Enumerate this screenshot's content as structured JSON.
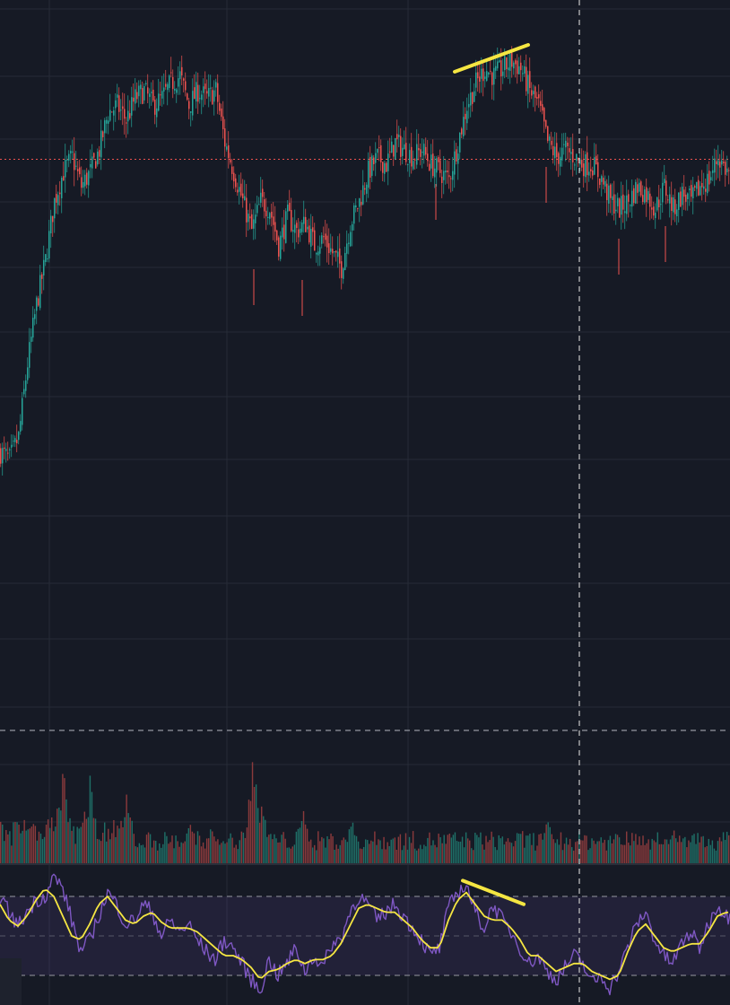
{
  "colors": {
    "background": "#161a25",
    "grid": "#262b37",
    "candle_up": "#26a69a",
    "candle_down": "#ef5350",
    "volume_up": "#1f6f67",
    "volume_down": "#8a3a3c",
    "rsi_line": "#7e57c2",
    "rsi_ma_line": "#f5e642",
    "rsi_band": "#7e57c2",
    "divergence_line": "#f5e642",
    "price_line": "#ef5350",
    "crosshair": "#c8c8c8",
    "separator": "#9598a1"
  },
  "chart_data": [
    {
      "type": "candlestick",
      "panel": "price",
      "title": "",
      "xlabel": "",
      "ylabel": "",
      "grid": true,
      "ylim": [
        0,
        100
      ],
      "x": [
        0,
        10,
        20,
        30,
        40,
        50,
        60,
        70,
        80,
        90,
        100,
        110,
        120,
        130,
        140,
        150,
        160,
        170,
        180,
        190,
        200,
        210,
        220,
        230,
        240,
        250,
        260,
        270,
        280,
        290,
        300,
        310,
        320,
        330,
        340,
        350,
        360,
        370,
        380,
        390,
        400,
        410,
        420,
        430,
        440,
        450,
        460,
        470,
        480,
        490,
        500,
        510,
        520,
        530,
        540,
        550,
        560,
        570,
        580,
        590,
        600,
        610,
        620,
        630,
        640,
        650,
        660,
        670,
        680,
        690,
        700,
        710,
        720,
        730,
        740,
        750,
        760,
        770,
        780,
        790,
        800,
        810
      ],
      "close_path": [
        46,
        45,
        48,
        58,
        66,
        72,
        80,
        84,
        86,
        82,
        84,
        87,
        92,
        93,
        91,
        94,
        95,
        93,
        94,
        96,
        97,
        93,
        95,
        94,
        95,
        88,
        84,
        80,
        76,
        80,
        79,
        74,
        78,
        76,
        77,
        74,
        75,
        73,
        71,
        77,
        80,
        84,
        86,
        85,
        88,
        87,
        86,
        87,
        85,
        84,
        83,
        88,
        93,
        96,
        98,
        97,
        98,
        99,
        98,
        95,
        93,
        88,
        86,
        87,
        86,
        85,
        85,
        83,
        80,
        79,
        80,
        82,
        81,
        79,
        82,
        79,
        81,
        80,
        82,
        83,
        86,
        84
      ],
      "price_line_level": 85.7,
      "divergence_line": {
        "from": [
          507,
          98.1
        ],
        "to": [
          589,
          100
        ]
      }
    },
    {
      "type": "bar",
      "panel": "volume",
      "title": "",
      "bar_count": 400,
      "spike_positions": [
        70,
        100,
        140,
        210,
        235,
        282,
        290,
        337,
        392,
        610,
        690,
        750,
        780
      ],
      "spike_levels": [
        92,
        88,
        62,
        50,
        48,
        130,
        80,
        78,
        58,
        52,
        38,
        40,
        34
      ]
    },
    {
      "type": "line",
      "panel": "rsi",
      "title": "",
      "ylim": [
        15,
        85
      ],
      "upper_band": 70,
      "middle_band": 50,
      "lower_band": 30,
      "series": [
        {
          "color": "#7e57c2",
          "x": [
            0,
            10,
            20,
            30,
            40,
            50,
            60,
            70,
            80,
            90,
            100,
            110,
            120,
            130,
            140,
            150,
            160,
            170,
            180,
            190,
            200,
            210,
            220,
            230,
            240,
            250,
            260,
            270,
            280,
            290,
            300,
            310,
            320,
            330,
            340,
            350,
            360,
            370,
            380,
            390,
            400,
            410,
            420,
            430,
            440,
            450,
            460,
            470,
            480,
            490,
            500,
            510,
            520,
            530,
            540,
            550,
            560,
            570,
            580,
            590,
            600,
            610,
            620,
            630,
            640,
            650,
            660,
            670,
            680,
            690,
            700,
            710,
            720,
            730,
            740,
            750,
            760,
            770,
            780,
            790,
            800,
            810
          ],
          "values": [
            70,
            62,
            55,
            62,
            68,
            70,
            80,
            74,
            58,
            42,
            48,
            60,
            72,
            66,
            56,
            58,
            66,
            62,
            50,
            58,
            52,
            56,
            48,
            42,
            38,
            48,
            44,
            36,
            28,
            22,
            38,
            30,
            36,
            44,
            32,
            40,
            34,
            46,
            48,
            62,
            70,
            66,
            58,
            62,
            66,
            60,
            54,
            48,
            40,
            44,
            64,
            72,
            76,
            62,
            54,
            66,
            58,
            52,
            44,
            36,
            40,
            32,
            28,
            34,
            40,
            36,
            26,
            30,
            24,
            32,
            44,
            56,
            62,
            48,
            40,
            36,
            46,
            52,
            44,
            56,
            66,
            60
          ]
        },
        {
          "color": "#f5e642",
          "x": [
            0,
            10,
            20,
            30,
            40,
            50,
            60,
            70,
            80,
            90,
            100,
            110,
            120,
            130,
            140,
            150,
            160,
            170,
            180,
            190,
            200,
            210,
            220,
            230,
            240,
            250,
            260,
            270,
            280,
            290,
            300,
            310,
            320,
            330,
            340,
            350,
            360,
            370,
            380,
            390,
            400,
            410,
            420,
            430,
            440,
            450,
            460,
            470,
            480,
            490,
            500,
            510,
            520,
            530,
            540,
            550,
            560,
            570,
            580,
            590,
            600,
            610,
            620,
            630,
            640,
            650,
            660,
            670,
            680,
            690,
            700,
            710,
            720,
            730,
            740,
            750,
            760,
            770,
            780,
            790,
            800,
            810
          ],
          "values": [
            66,
            58,
            55,
            60,
            68,
            74,
            70,
            60,
            50,
            48,
            56,
            66,
            70,
            64,
            58,
            56,
            60,
            62,
            57,
            54,
            54,
            54,
            52,
            48,
            44,
            40,
            40,
            38,
            34,
            28,
            32,
            33,
            36,
            38,
            36,
            38,
            38,
            40,
            46,
            55,
            64,
            66,
            64,
            62,
            62,
            58,
            54,
            48,
            44,
            44,
            58,
            68,
            72,
            66,
            60,
            58,
            58,
            54,
            48,
            40,
            40,
            36,
            32,
            34,
            36,
            36,
            32,
            30,
            28,
            30,
            42,
            52,
            56,
            50,
            44,
            42,
            44,
            46,
            46,
            52,
            60,
            62
          ]
        }
      ],
      "divergence_line": {
        "from": [
          516,
          78
        ],
        "to": [
          584,
          66
        ]
      }
    }
  ]
}
